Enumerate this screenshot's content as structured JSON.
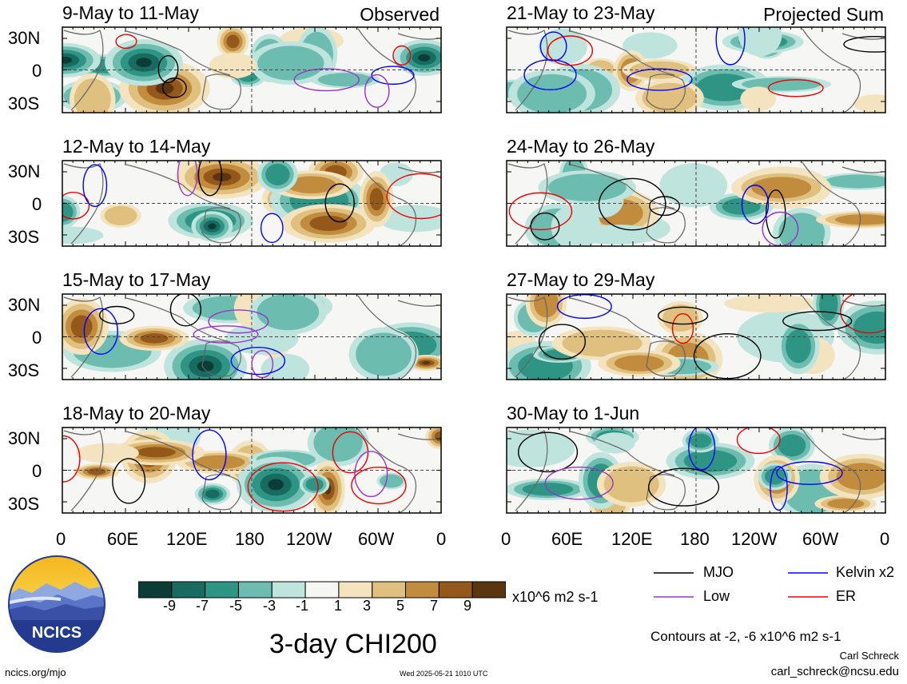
{
  "panels": [
    {
      "id": "p1",
      "title": "9-May to 11-May",
      "label": "Observed",
      "col": 0,
      "row": 0
    },
    {
      "id": "p2",
      "title": "12-May to 14-May",
      "label": "",
      "col": 0,
      "row": 1
    },
    {
      "id": "p3",
      "title": "15-May to 17-May",
      "label": "",
      "col": 0,
      "row": 2
    },
    {
      "id": "p4",
      "title": "18-May to 20-May",
      "label": "",
      "col": 0,
      "row": 3
    },
    {
      "id": "p5",
      "title": "21-May to 23-May",
      "label": "Projected Sum",
      "col": 1,
      "row": 0
    },
    {
      "id": "p6",
      "title": "24-May to 26-May",
      "label": "",
      "col": 1,
      "row": 1
    },
    {
      "id": "p7",
      "title": "27-May to 29-May",
      "label": "",
      "col": 1,
      "row": 2
    },
    {
      "id": "p8",
      "title": "30-May to 1-Jun",
      "label": "",
      "col": 1,
      "row": 3
    }
  ],
  "lat_labels": [
    "30N",
    "0",
    "30S"
  ],
  "lon_labels": [
    "0",
    "60E",
    "120E",
    "180",
    "120W",
    "60W",
    "0"
  ],
  "colorbar": {
    "ticks": [
      "-9",
      "-7",
      "-5",
      "-3",
      "-1",
      "1",
      "3",
      "5",
      "7",
      "9"
    ],
    "colors": [
      "#0b3d36",
      "#176b60",
      "#2e9585",
      "#6cbdb0",
      "#bfe3dd",
      "#f6f6f4",
      "#f3e4bf",
      "#dfc07f",
      "#c28c3e",
      "#94581b",
      "#5b3410"
    ],
    "units": "x10^6 m2 s-1"
  },
  "main_title": "3-day CHI200",
  "legend": {
    "items": [
      {
        "label": "MJO",
        "color": "#000000"
      },
      {
        "label": "Kelvin x2",
        "color": "#0000ff"
      },
      {
        "label": "Low",
        "color": "#9933cc"
      },
      {
        "label": "ER",
        "color": "#ee0000"
      }
    ]
  },
  "contours_note": "Contours at -2, -6 x10^6 m2 s-1",
  "author": "Carl Schreck",
  "email": "carl_schreck@ncsu.edu",
  "site": "ncics.org/mjo",
  "timestamp": "Wed 2025-05-21 1010 UTC",
  "logo_text": "NCICS"
}
